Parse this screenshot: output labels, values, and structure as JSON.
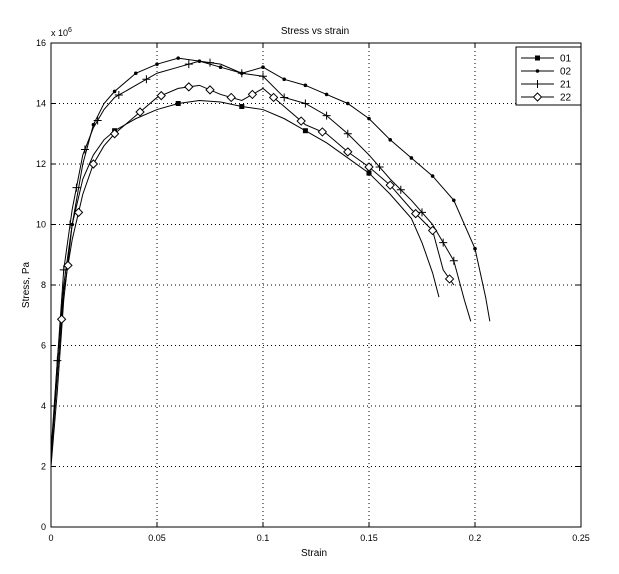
{
  "chart_data": {
    "type": "line",
    "title": "Stress vs strain",
    "xlabel": "Strain",
    "ylabel": "Stress, Pa",
    "y_multiplier": "x 10",
    "y_multiplier_exponent": "6",
    "xlim": [
      0,
      0.25
    ],
    "ylim": [
      0,
      16
    ],
    "x_tick_values": [
      0,
      0.05,
      0.1,
      0.15,
      0.2,
      0.25
    ],
    "x_tick_labels": [
      "0",
      "0.05",
      "0.1",
      "0.15",
      "0.2",
      "0.25"
    ],
    "y_tick_values": [
      0,
      2,
      4,
      6,
      8,
      10,
      12,
      14,
      16
    ],
    "y_tick_labels": [
      "0",
      "2",
      "4",
      "6",
      "8",
      "10",
      "12",
      "14",
      "16"
    ],
    "grid": true,
    "legend_position": "top-right",
    "series": [
      {
        "name": "01",
        "marker": "square",
        "x": [
          0,
          0.003,
          0.006,
          0.01,
          0.015,
          0.02,
          0.025,
          0.03,
          0.04,
          0.05,
          0.06,
          0.07,
          0.08,
          0.09,
          0.1,
          0.11,
          0.12,
          0.13,
          0.14,
          0.15,
          0.16,
          0.17,
          0.175,
          0.18,
          0.183
        ],
        "y": [
          2.2,
          5.5,
          8.0,
          10.0,
          11.5,
          12.3,
          12.8,
          13.1,
          13.5,
          13.8,
          14.0,
          14.1,
          14.05,
          13.9,
          13.8,
          13.5,
          13.1,
          12.7,
          12.2,
          11.7,
          11.0,
          10.2,
          9.4,
          8.4,
          7.6
        ],
        "marker_x": [
          0.03,
          0.06,
          0.09,
          0.12,
          0.15
        ]
      },
      {
        "name": "02",
        "marker": "point",
        "x": [
          0,
          0.003,
          0.006,
          0.01,
          0.015,
          0.02,
          0.025,
          0.03,
          0.04,
          0.05,
          0.06,
          0.07,
          0.08,
          0.09,
          0.1,
          0.11,
          0.12,
          0.13,
          0.14,
          0.15,
          0.16,
          0.17,
          0.18,
          0.19,
          0.2,
          0.205,
          0.207
        ],
        "y": [
          2.0,
          4.5,
          7.5,
          10.0,
          12.0,
          13.3,
          14.0,
          14.4,
          15.0,
          15.3,
          15.5,
          15.4,
          15.2,
          15.0,
          15.2,
          14.8,
          14.6,
          14.3,
          14.0,
          13.5,
          12.8,
          12.2,
          11.6,
          10.8,
          9.2,
          7.6,
          6.8
        ],
        "marker_x": [
          0.01,
          0.02,
          0.03,
          0.04,
          0.05,
          0.06,
          0.07,
          0.08,
          0.09,
          0.1,
          0.11,
          0.12,
          0.13,
          0.14,
          0.15,
          0.16,
          0.17,
          0.18,
          0.19,
          0.2
        ]
      },
      {
        "name": "21",
        "marker": "plus",
        "x": [
          0,
          0.003,
          0.006,
          0.01,
          0.015,
          0.02,
          0.025,
          0.03,
          0.04,
          0.05,
          0.06,
          0.07,
          0.08,
          0.09,
          0.1,
          0.11,
          0.12,
          0.13,
          0.14,
          0.15,
          0.16,
          0.17,
          0.18,
          0.19,
          0.195,
          0.198
        ],
        "y": [
          2.5,
          5.5,
          8.5,
          10.5,
          12.3,
          13.2,
          13.8,
          14.2,
          14.6,
          15.0,
          15.2,
          15.4,
          15.3,
          15.0,
          14.9,
          14.2,
          14.0,
          13.6,
          13.0,
          12.3,
          11.5,
          10.8,
          10.0,
          8.8,
          7.5,
          6.8
        ],
        "marker_x": [
          0.003,
          0.006,
          0.009,
          0.012,
          0.016,
          0.022,
          0.032,
          0.045,
          0.065,
          0.075,
          0.09,
          0.1,
          0.11,
          0.12,
          0.13,
          0.14,
          0.155,
          0.165,
          0.175,
          0.185,
          0.19
        ]
      },
      {
        "name": "22",
        "marker": "diamond",
        "x": [
          0,
          0.003,
          0.006,
          0.01,
          0.015,
          0.02,
          0.025,
          0.03,
          0.04,
          0.05,
          0.06,
          0.07,
          0.08,
          0.09,
          0.1,
          0.11,
          0.12,
          0.13,
          0.14,
          0.15,
          0.16,
          0.17,
          0.18,
          0.185,
          0.19
        ],
        "y": [
          2.3,
          5.0,
          7.8,
          9.5,
          11.0,
          12.0,
          12.6,
          13.0,
          13.6,
          14.2,
          14.5,
          14.6,
          14.3,
          14.1,
          14.5,
          13.9,
          13.3,
          13.0,
          12.4,
          11.9,
          11.3,
          10.5,
          9.8,
          8.5,
          8.0
        ],
        "marker_x": [
          0.005,
          0.008,
          0.013,
          0.02,
          0.03,
          0.042,
          0.052,
          0.065,
          0.075,
          0.085,
          0.095,
          0.105,
          0.118,
          0.128,
          0.14,
          0.15,
          0.16,
          0.172,
          0.18,
          0.188
        ]
      }
    ]
  }
}
